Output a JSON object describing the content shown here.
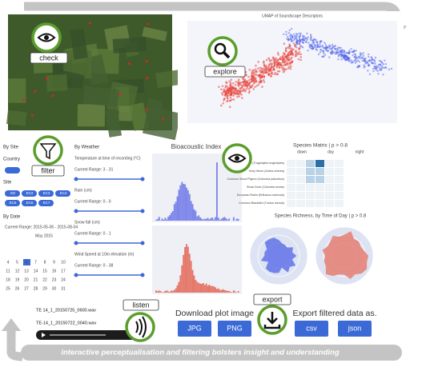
{
  "map": {
    "label": "check"
  },
  "umap": {
    "title": "UMAP of Soundscape Descriptors",
    "label": "explore"
  },
  "filters": {
    "label": "filter",
    "by_site": "By Site",
    "country": "Country",
    "site": "Site",
    "site_chips": [
      "SO",
      "EC2",
      "EC3",
      "EC4",
      "EC5",
      "EC6",
      "EC7"
    ],
    "by_date": "By Date",
    "date_range": "Current Range: 2015-05-06 - 2015-08-04",
    "month": "May 2015",
    "days": [
      "4",
      "5",
      "6",
      "7",
      "8",
      "9",
      "10",
      "11",
      "12",
      "13",
      "14",
      "15",
      "16",
      "17",
      "18",
      "19",
      "20",
      "21",
      "22",
      "23",
      "24",
      "25",
      "26",
      "27",
      "28",
      "29",
      "30",
      "31"
    ]
  },
  "weather": {
    "title": "By Weather",
    "items": [
      {
        "name": "Temperature at time of recording (°C)",
        "range": "Current Range: 3 - 31"
      },
      {
        "name": "Rain (cm)",
        "range": "Current Range: 0 - 0"
      },
      {
        "name": "Snow fall (cm)",
        "range": "Current Range: 0 - 1"
      },
      {
        "name": "Wind Speed at 10m elevation (m)",
        "range": "Current Range: 0 - 38"
      }
    ]
  },
  "bioacoustic": {
    "title": "Bioacoustic Index"
  },
  "species_matrix": {
    "title": "Species Matrix | p > 0.8",
    "columns": [
      "dawn",
      "day",
      "night"
    ],
    "rows": [
      "Eurasian Wren (Troglodytes troglodytes)",
      "Grey Heron (Ardea cinerea)",
      "Common Wood Pigeon (Columba palumbus)",
      "Stock Dove (Columba oenas)",
      "European Robin (Erithacus rubecula)",
      "Common Blackbird (Turdus merula)"
    ]
  },
  "species_richness": {
    "title": "Species Richness, by Time of Day | p > 0.8"
  },
  "audio": {
    "label": "listen",
    "files": [
      "TE 14_1_20150725_0600.wav",
      "TE-14_1_20150722_0040.wav"
    ]
  },
  "export": {
    "label": "export",
    "download_title": "Download plot image",
    "image_buttons": [
      "JPG",
      "PNG"
    ],
    "data_title": "Export filtered data as.",
    "data_buttons": [
      "csv",
      "json"
    ]
  },
  "caption": "interactive perceptualisation and filtering bolsters insight and understanding"
}
